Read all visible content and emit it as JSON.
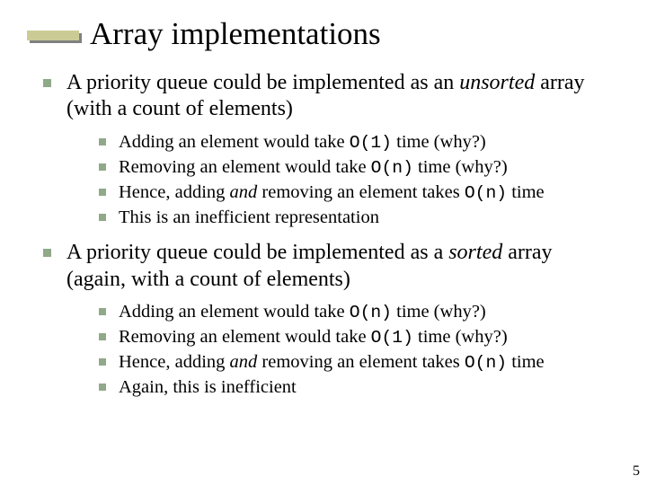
{
  "title": "Array implementations",
  "page_number": "5",
  "colors": {
    "bullet": "#90a989",
    "deco_bar": "#cbcb96",
    "deco_shadow": "#808080",
    "background": "#ffffff",
    "text": "#000000"
  },
  "typography": {
    "title_fontsize": 35,
    "lvl1_fontsize": 24,
    "lvl2_fontsize": 20.5,
    "code_font": "Courier New",
    "body_font": "Times New Roman"
  },
  "top1": {
    "pre": "A priority queue could be implemented as an ",
    "em": "unsorted",
    "post": " array (with a count of elements)",
    "sub": {
      "a": {
        "t1": "Adding an element would take ",
        "code": "O(1)",
        "t2": " time (why?)"
      },
      "b": {
        "t1": "Removing an element would take ",
        "code": "O(n)",
        "t2": " time (why?)"
      },
      "c": {
        "t1": "Hence, adding ",
        "em": "and",
        "t2": " removing an element takes ",
        "code": "O(n)",
        "t3": " time"
      },
      "d": {
        "t1": "This is an inefficient representation"
      }
    }
  },
  "top2": {
    "pre": "A priority queue could be implemented as a ",
    "em": "sorted",
    "post": " array (again, with a count of elements)",
    "sub": {
      "a": {
        "t1": "Adding an element would take ",
        "code": "O(n)",
        "t2": " time (why?)"
      },
      "b": {
        "t1": "Removing an element would take ",
        "code": "O(1)",
        "t2": " time (why?)"
      },
      "c": {
        "t1": "Hence, adding ",
        "em": "and",
        "t2": " removing an element takes ",
        "code": "O(n)",
        "t3": " time"
      },
      "d": {
        "t1": "Again, this is inefficient"
      }
    }
  }
}
